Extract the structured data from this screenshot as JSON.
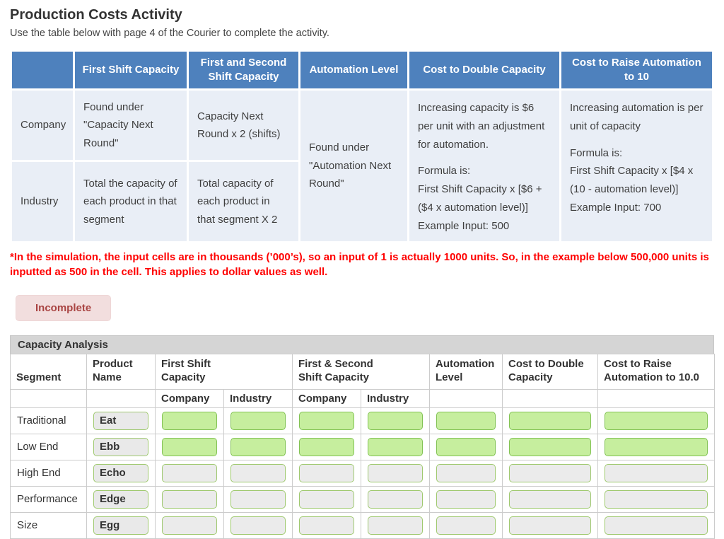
{
  "page": {
    "title": "Production Costs Activity",
    "subtitle": "Use the table below with page 4 of the Courier to complete the activity.",
    "note": "*In the simulation, the input cells are in thousands (’000’s), so an input of 1 is actually 1000 units. So, in the example below 500,000 units is inputted as 500 in the cell. This applies to dollar values as well.",
    "status_badge": "Incomplete"
  },
  "colors": {
    "header_blue": "#4e81bd",
    "cell_light_blue": "#e9eef6",
    "note_red": "#ff0000",
    "badge_bg": "#f2dede",
    "badge_text": "#a94442",
    "section_bar_gray": "#d5d5d5",
    "input_green_bg": "#c6ee9e",
    "input_green_border": "#82c254",
    "input_gray_bg": "#ebebeb",
    "input_gray_border": "#9fc96f"
  },
  "reference_table": {
    "headers": [
      "",
      "First Shift Capacity",
      "First and Second Shift Capacity",
      "Automation Level",
      "Cost to Double Capacity",
      "Cost to Raise Automation to 10"
    ],
    "company": {
      "label": "Company",
      "first_shift": "Found under \"Capacity Next Round\"",
      "both_shifts": "Capacity Next Round x 2 (shifts)"
    },
    "industry": {
      "label": "Industry",
      "first_shift": "Total the capacity of each product in that segment",
      "both_shifts": "Total capacity of each product in that segment X 2"
    },
    "automation_level": "Found under \"Automation Next Round\"",
    "cost_double": {
      "intro": "Increasing capacity is $6 per unit with an adjustment for automation.",
      "formula_block": "Formula is:\nFirst Shift Capacity x [$6 + ($4 x automation level)]\nExample Input: 500"
    },
    "cost_raise": {
      "intro": "Increasing automation is per unit of capacity",
      "formula_block": "Formula is:\nFirst Shift Capacity x [$4 x (10 - automation level)]\nExample Input: 700"
    }
  },
  "capacity_analysis": {
    "section_title": "Capacity Analysis",
    "col_headers": {
      "segment": "Segment",
      "product_name": "Product\nName",
      "first_shift": "First Shift\nCapacity",
      "both_shifts": "First & Second\nShift Capacity",
      "automation": "Automation\nLevel",
      "cost_double": "Cost to Double\nCapacity",
      "cost_raise": "Cost to Raise\nAutomation to 10.0"
    },
    "sub_headers": [
      "Company",
      "Industry",
      "Company",
      "Industry"
    ],
    "rows": [
      {
        "segment": "Traditional",
        "product": "Eat",
        "state": "active"
      },
      {
        "segment": "Low End",
        "product": "Ebb",
        "state": "active"
      },
      {
        "segment": "High End",
        "product": "Echo",
        "state": "inactive"
      },
      {
        "segment": "Performance",
        "product": "Edge",
        "state": "inactive"
      },
      {
        "segment": "Size",
        "product": "Egg",
        "state": "inactive"
      }
    ]
  }
}
